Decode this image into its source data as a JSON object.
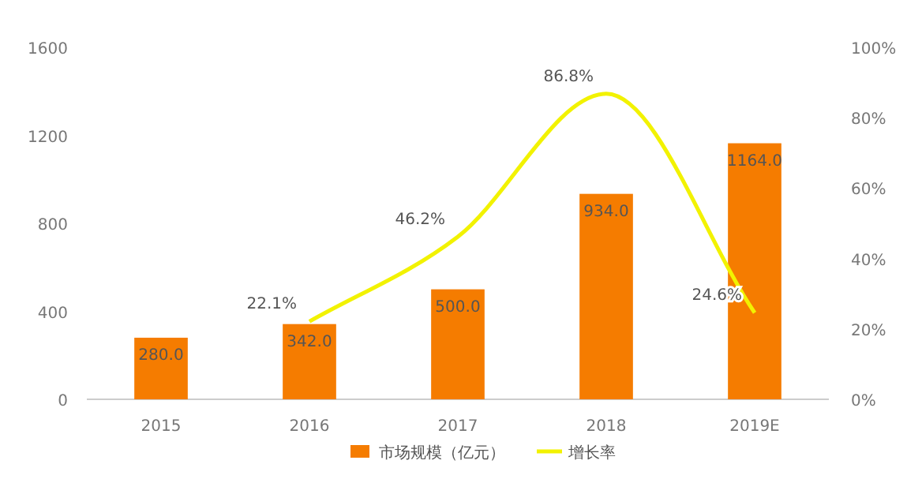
{
  "chart_data": {
    "type": "bar",
    "categories": [
      "2015",
      "2016",
      "2017",
      "2018",
      "2019E"
    ],
    "series": [
      {
        "name": "市场规模（亿元）",
        "color": "#f57c00",
        "values": [
          280,
          342,
          500,
          934,
          1164
        ],
        "value_labels": [
          "280.0",
          "342.0",
          "500.0",
          "934.0",
          "1164.0"
        ]
      },
      {
        "name": "增长率",
        "type": "line",
        "axis": "y2",
        "color": "#f2f200",
        "values": [
          null,
          22.1,
          46.2,
          86.8,
          24.6
        ],
        "value_labels": [
          null,
          "22.1%",
          "46.2%",
          "86.8%",
          "24.6%"
        ]
      }
    ],
    "ylim": [
      0,
      1600
    ],
    "yticks": [
      0,
      400,
      800,
      1200,
      1600
    ],
    "y2lim": [
      0,
      100
    ],
    "y2ticks": [
      {
        "value": 0,
        "label": "0%"
      },
      {
        "value": 20,
        "label": "20%"
      },
      {
        "value": 40,
        "label": "40%"
      },
      {
        "value": 60,
        "label": "60%"
      },
      {
        "value": 80,
        "label": "80%"
      },
      {
        "value": 100,
        "label": "100%"
      }
    ],
    "legend": "bottom",
    "grid": false
  }
}
